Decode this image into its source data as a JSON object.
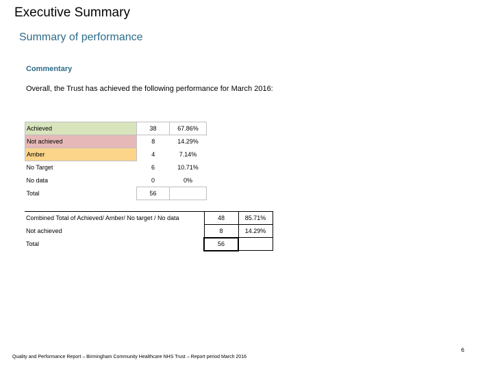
{
  "header": {
    "title": "Executive Summary",
    "subtitle": "Summary of performance"
  },
  "commentary": {
    "heading": "Commentary",
    "intro": "Overall, the Trust has achieved the following performance for March 2016:"
  },
  "table1": {
    "rows": [
      {
        "label": "Achieved",
        "count": "38",
        "pct": "67.86%"
      },
      {
        "label": "Not achieved",
        "count": "8",
        "pct": "14.29%"
      },
      {
        "label": "Amber",
        "count": "4",
        "pct": "7.14%"
      },
      {
        "label": "No Target",
        "count": "6",
        "pct": "10.71%"
      },
      {
        "label": "No data",
        "count": "0",
        "pct": "0%"
      },
      {
        "label": "Total",
        "count": "56",
        "pct": ""
      }
    ]
  },
  "table2": {
    "rows": [
      {
        "label": "Combined Total of Achieved/ Amber/ No target / No data",
        "count": "48",
        "pct": "85.71%"
      },
      {
        "label": "Not achieved",
        "count": "8",
        "pct": "14.29%"
      },
      {
        "label": "Total",
        "count": "56",
        "pct": ""
      }
    ]
  },
  "footer": {
    "page_number": "6",
    "text": "Quality and Performance Report – Birmingham Community Healthcare NHS Trust – Report period March 2016"
  },
  "colors": {
    "achieved": "#d8e4bc",
    "not_achieved": "#e6b8b7",
    "amber": "#fcd58a",
    "heading_blue": "#2e6b8a"
  }
}
